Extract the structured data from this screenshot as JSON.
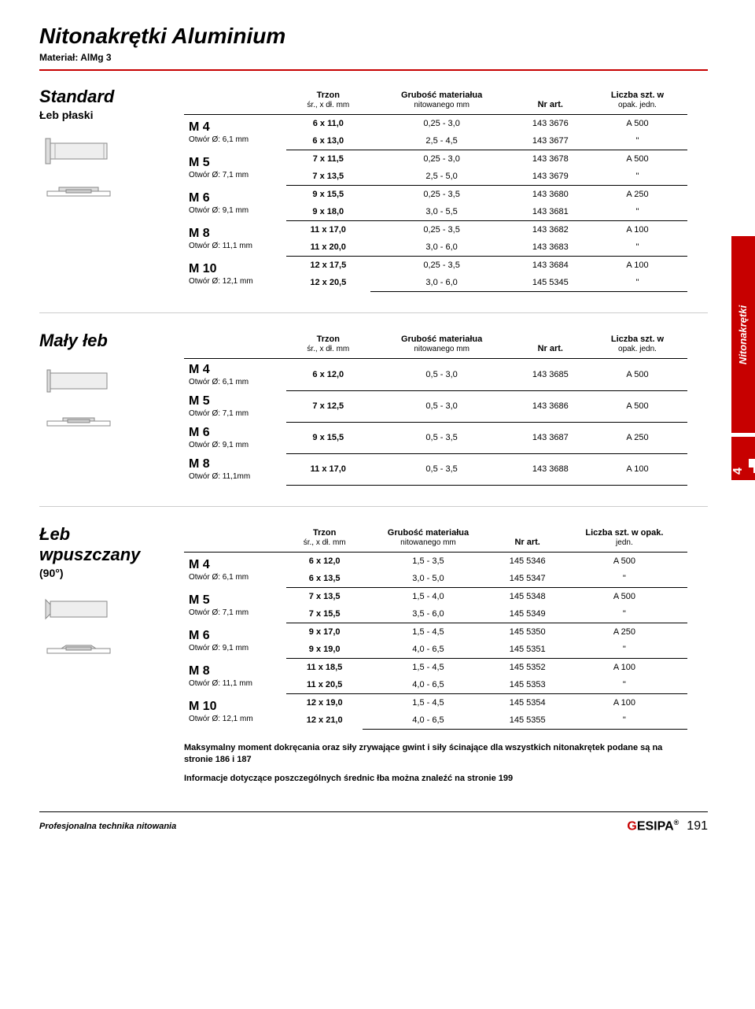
{
  "page": {
    "title": "Nitonakrętki Aluminium",
    "material": "Materiał: AlMg 3",
    "sidebar_label": "Nitonakrętki",
    "section_number": "4",
    "footer_left": "Profesjonalna technika nitowania",
    "footer_logo_g": "G",
    "footer_logo_rest": "ESIPA",
    "footer_logo_reg": "®",
    "page_number": "191"
  },
  "columns": {
    "trzon": "Trzon",
    "trzon_sub": "śr., x dł. mm",
    "grubosc": "Grubość materiałua",
    "grubosc_sub": "nitowanego mm",
    "nrart": "Nr art.",
    "liczba": "Liczba szt. w",
    "liczba_sub": "opak. jedn.",
    "liczba2": "Liczba szt. w opak.",
    "liczba2_sub": "jedn."
  },
  "sections": [
    {
      "title": "Standard",
      "subtitle": "Łeb płaski",
      "icons": [
        "rivet-flat",
        "rivet-flat-section"
      ],
      "groups": [
        {
          "label": "M 4",
          "sublabel": "Otwór Ø: 6,1 mm",
          "rows": [
            {
              "trzon": "6 x 11,0",
              "grubosc": "0,25 - 3,0",
              "nrart": "143 3676",
              "qty": "A 500"
            },
            {
              "trzon": "6 x 13,0",
              "grubosc": "2,5 - 4,5",
              "nrart": "143 3677",
              "qty": "\""
            }
          ]
        },
        {
          "label": "M 5",
          "sublabel": "Otwór Ø: 7,1 mm",
          "rows": [
            {
              "trzon": "7 x 11,5",
              "grubosc": "0,25 - 3,0",
              "nrart": "143 3678",
              "qty": "A 500"
            },
            {
              "trzon": "7 x 13,5",
              "grubosc": "2,5 - 5,0",
              "nrart": "143 3679",
              "qty": "\""
            }
          ]
        },
        {
          "label": "M 6",
          "sublabel": "Otwór Ø: 9,1 mm",
          "rows": [
            {
              "trzon": "9 x 15,5",
              "grubosc": "0,25 - 3,5",
              "nrart": "143 3680",
              "qty": "A 250"
            },
            {
              "trzon": "9 x 18,0",
              "grubosc": "3,0 - 5,5",
              "nrart": "143 3681",
              "qty": "\""
            }
          ]
        },
        {
          "label": "M 8",
          "sublabel": "Otwór Ø: 11,1 mm",
          "rows": [
            {
              "trzon": "11 x 17,0",
              "grubosc": "0,25 - 3,5",
              "nrart": "143 3682",
              "qty": "A 100"
            },
            {
              "trzon": "11 x 20,0",
              "grubosc": "3,0 - 6,0",
              "nrart": "143 3683",
              "qty": "\""
            }
          ]
        },
        {
          "label": "M 10",
          "sublabel": "Otwór Ø: 12,1 mm",
          "rows": [
            {
              "trzon": "12 x 17,5",
              "grubosc": "0,25 - 3,5",
              "nrart": "143 3684",
              "qty": "A 100"
            },
            {
              "trzon": "12 x 20,5",
              "grubosc": "3,0 - 6,0",
              "nrart": "145 5345",
              "qty": "\""
            }
          ]
        }
      ]
    },
    {
      "title": "Mały łeb",
      "subtitle": "",
      "icons": [
        "rivet-small",
        "rivet-small-section"
      ],
      "groups": [
        {
          "label": "M 4",
          "sublabel": "Otwór Ø: 6,1 mm",
          "rows": [
            {
              "trzon": "6 x 12,0",
              "grubosc": "0,5 - 3,0",
              "nrart": "143 3685",
              "qty": "A 500"
            }
          ]
        },
        {
          "label": "M 5",
          "sublabel": "Otwór Ø: 7,1 mm",
          "rows": [
            {
              "trzon": "7 x 12,5",
              "grubosc": "0,5 - 3,0",
              "nrart": "143 3686",
              "qty": "A 500"
            }
          ]
        },
        {
          "label": "M 6",
          "sublabel": "Otwór Ø: 9,1 mm",
          "rows": [
            {
              "trzon": "9 x 15,5",
              "grubosc": "0,5 - 3,5",
              "nrart": "143 3687",
              "qty": "A 250"
            }
          ]
        },
        {
          "label": "M 8",
          "sublabel": "Otwór Ø: 11,1mm",
          "rows": [
            {
              "trzon": "11 x 17,0",
              "grubosc": "0,5 - 3,5",
              "nrart": "143 3688",
              "qty": "A 100"
            }
          ]
        }
      ]
    },
    {
      "title": "Łeb wpuszczany",
      "subtitle": "(90°)",
      "icons": [
        "rivet-csk",
        "rivet-csk-section"
      ],
      "liczba_alt": true,
      "groups": [
        {
          "label": "M 4",
          "sublabel": "Otwór Ø: 6,1 mm",
          "rows": [
            {
              "trzon": "6 x 12,0",
              "grubosc": "1,5 - 3,5",
              "nrart": "145 5346",
              "qty": "A 500"
            },
            {
              "trzon": "6 x 13,5",
              "grubosc": "3,0 - 5,0",
              "nrart": "145 5347",
              "qty": "\""
            }
          ]
        },
        {
          "label": "M 5",
          "sublabel": "Otwór Ø: 7,1 mm",
          "rows": [
            {
              "trzon": "7 x 13,5",
              "grubosc": "1,5 - 4,0",
              "nrart": "145 5348",
              "qty": "A 500"
            },
            {
              "trzon": "7 x 15,5",
              "grubosc": "3,5 - 6,0",
              "nrart": "145 5349",
              "qty": "\""
            }
          ]
        },
        {
          "label": "M 6",
          "sublabel": "Otwór Ø: 9,1 mm",
          "rows": [
            {
              "trzon": "9 x 17,0",
              "grubosc": "1,5 - 4,5",
              "nrart": "145 5350",
              "qty": "A 250"
            },
            {
              "trzon": "9 x 19,0",
              "grubosc": "4,0 - 6,5",
              "nrart": "145 5351",
              "qty": "\""
            }
          ]
        },
        {
          "label": "M 8",
          "sublabel": "Otwór Ø: 11,1 mm",
          "rows": [
            {
              "trzon": "11 x 18,5",
              "grubosc": "1,5 - 4,5",
              "nrart": "145 5352",
              "qty": "A 100"
            },
            {
              "trzon": "11 x 20,5",
              "grubosc": "4,0 - 6,5",
              "nrart": "145 5353",
              "qty": "\""
            }
          ]
        },
        {
          "label": "M 10",
          "sublabel": "Otwór Ø: 12,1 mm",
          "rows": [
            {
              "trzon": "12 x 19,0",
              "grubosc": "1,5 - 4,5",
              "nrart": "145 5354",
              "qty": "A 100"
            },
            {
              "trzon": "12 x 21,0",
              "grubosc": "4,0 - 6,5",
              "nrart": "145 5355",
              "qty": "\""
            }
          ]
        }
      ]
    }
  ],
  "notes": [
    "Maksymalny moment dokręcania oraz siły zrywające gwint i siły ścinające dla wszystkich nitonakrętek podane są na stronie 186 i 187",
    "Informacje dotyczące poszczególnych średnic łba można znaleźć na stronie 199"
  ]
}
